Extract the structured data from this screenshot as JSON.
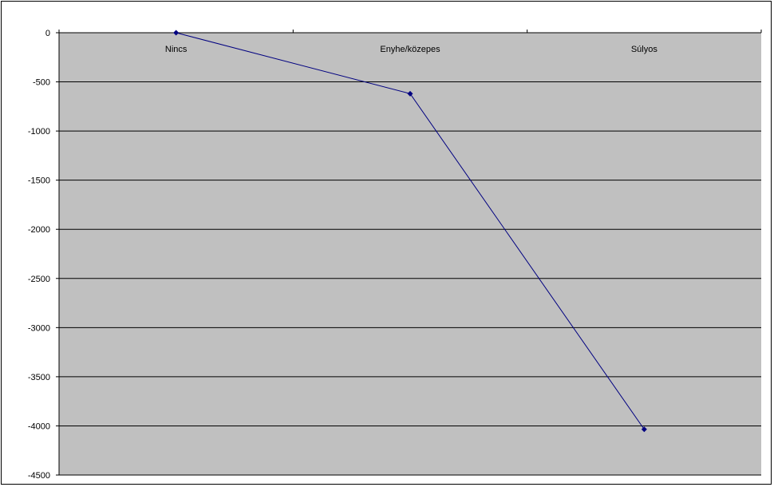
{
  "chart_data": {
    "type": "line",
    "title": "",
    "xlabel": "",
    "ylabel": "",
    "categories": [
      "Nincs",
      "Enyhe/közepes",
      "Súlyos"
    ],
    "series": [
      {
        "values": [
          0,
          -620,
          -4035
        ]
      }
    ],
    "ylim": [
      -4500,
      0
    ],
    "y_ticks": [
      0,
      -500,
      -1000,
      -1500,
      -2000,
      -2500,
      -3000,
      -3500,
      -4000,
      -4500
    ],
    "grid": true,
    "legend": "none",
    "colors": {
      "plot_background": "#C0C0C0",
      "line": "#000080",
      "marker": "#000080",
      "grid": "#000000"
    }
  }
}
